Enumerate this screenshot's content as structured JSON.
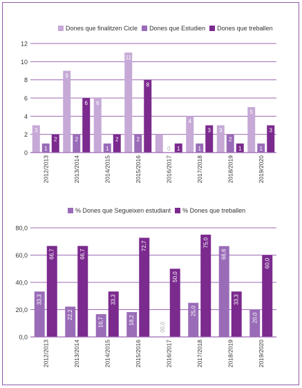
{
  "colors": {
    "light": "#c6a9d6",
    "mid": "#9a6cb8",
    "dark": "#7b2a8e",
    "grid": "#9b67b4",
    "frame": "#8c5aa8"
  },
  "chart_data": [
    {
      "type": "bar",
      "title": "",
      "xlabel": "",
      "ylabel": "",
      "categories": [
        "2012/2013",
        "2013/2014",
        "2014/2015",
        "2015/2016",
        "2016/2017",
        "2017/2018",
        "2018/2019",
        "2019/2020"
      ],
      "series": [
        {
          "name": "Dones que finalitzen Cicle",
          "values": [
            3,
            9,
            6,
            11,
            2,
            4,
            3,
            5
          ],
          "labels": [
            "3",
            "9",
            "6",
            "11",
            "",
            "4",
            "3",
            "5"
          ],
          "color": "light"
        },
        {
          "name": "Dones que Estudien",
          "values": [
            1,
            2,
            1,
            2,
            0,
            1,
            2,
            1
          ],
          "labels": [
            "1",
            "2",
            "1",
            "2",
            "0",
            "1",
            "2",
            "1"
          ],
          "color": "mid"
        },
        {
          "name": "Dones que treballen",
          "values": [
            2,
            6,
            2,
            8,
            1,
            3,
            1,
            3
          ],
          "labels": [
            "2",
            "6",
            "2",
            "8",
            "1",
            "3",
            "1",
            "3"
          ],
          "color": "dark"
        }
      ],
      "ylim": [
        0,
        12
      ],
      "yticks": [
        "0",
        "2",
        "4",
        "6",
        "8",
        "10",
        "12"
      ],
      "grid": true,
      "legend": "top-center"
    },
    {
      "type": "bar",
      "title": "",
      "xlabel": "",
      "ylabel": "",
      "categories": [
        "2012/2013",
        "2013/2014",
        "2014/2015",
        "2015/2016",
        "2016/2017",
        "2017/2018",
        "2018/2019",
        "2019/2020"
      ],
      "series": [
        {
          "name": "% Dones que Segueixen estudiant",
          "values": [
            33.3,
            22.2,
            16.7,
            18.2,
            0.0,
            25.0,
            66.6,
            20.0
          ],
          "labels": [
            "33,3",
            "22,2",
            "16,7",
            "18,2",
            "00,0",
            "25,0",
            "66,6",
            "20,0"
          ],
          "color": "mid"
        },
        {
          "name": "% Dones que treballen",
          "values": [
            66.7,
            66.7,
            33.3,
            72.7,
            50.0,
            75.0,
            33.3,
            60.0
          ],
          "labels": [
            "66,7",
            "66,7",
            "33,3",
            "72,7",
            "50,0",
            "75,0",
            "33,3",
            "60,0"
          ],
          "color": "dark"
        }
      ],
      "ylim": [
        0,
        80
      ],
      "yticks": [
        "0,0",
        "20,0",
        "40,0",
        "60,0",
        "80,0"
      ],
      "grid": true,
      "legend": "top-center"
    }
  ]
}
